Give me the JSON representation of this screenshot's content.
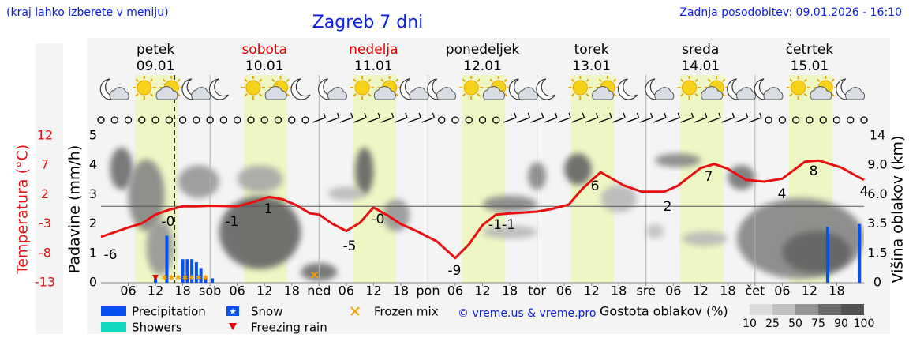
{
  "header": {
    "left_note": "(kraj lahko izberete v meniju)",
    "title": "Zagreb 7 dni",
    "updated": "Zadnja posodobitev: 09.01.2026 - 16:10"
  },
  "chart_data": {
    "type": "meteogram",
    "days": [
      {
        "name": "petek",
        "date": "09.01",
        "color": "#000000"
      },
      {
        "name": "sobota",
        "date": "10.01",
        "color": "#e00000"
      },
      {
        "name": "nedelja",
        "date": "11.01",
        "color": "#e00000"
      },
      {
        "name": "ponedeljek",
        "date": "12.01",
        "color": "#000000"
      },
      {
        "name": "torek",
        "date": "13.01",
        "color": "#000000"
      },
      {
        "name": "sreda",
        "date": "14.01",
        "color": "#000000"
      },
      {
        "name": "četrtek",
        "date": "15.01",
        "color": "#000000"
      }
    ],
    "xlim": [
      0,
      168
    ],
    "xticks": [
      {
        "value": 6,
        "label": "06"
      },
      12,
      18,
      {
        "value": 24,
        "label": "sob"
      },
      {
        "value": 30,
        "label": "06"
      },
      {
        "value": 36,
        "label": "12"
      },
      {
        "value": 42,
        "label": "18"
      },
      {
        "value": 48,
        "label": "ned"
      },
      {
        "value": 54,
        "label": "06"
      },
      {
        "value": 60,
        "label": "12"
      },
      {
        "value": 66,
        "label": "18"
      },
      {
        "value": 72,
        "label": "pon"
      },
      {
        "value": 78,
        "label": "06"
      },
      {
        "value": 84,
        "label": "12"
      },
      {
        "value": 90,
        "label": "18"
      },
      {
        "value": 96,
        "label": "tor"
      },
      {
        "value": 102,
        "label": "06"
      },
      {
        "value": 108,
        "label": "12"
      },
      {
        "value": 114,
        "label": "18"
      },
      {
        "value": 120,
        "label": "sre"
      },
      {
        "value": 126,
        "label": "06"
      },
      {
        "value": 132,
        "label": "12"
      },
      {
        "value": 138,
        "label": "18"
      },
      {
        "value": 144,
        "label": "čet"
      },
      {
        "value": 150,
        "label": "06"
      },
      {
        "value": 156,
        "label": "12"
      },
      {
        "value": 162,
        "label": "18"
      }
    ],
    "temperature": {
      "name": "Temperatura (°C)",
      "color": "#e81010",
      "ylim": [
        -13,
        12
      ],
      "yticks": [
        12,
        7,
        2,
        -3,
        -8,
        -13
      ],
      "x": [
        0,
        3,
        6,
        9,
        12,
        15,
        18,
        21,
        24,
        30,
        33,
        37,
        40,
        43,
        46,
        48,
        51,
        54,
        57,
        60,
        63,
        66,
        70,
        74,
        78,
        81,
        84,
        87,
        90,
        96,
        99,
        103,
        106,
        110,
        115,
        119,
        124,
        127,
        132,
        135,
        138,
        142,
        146,
        150,
        155,
        158,
        163,
        166,
        168
      ],
      "values": [
        -5.2,
        -4.4,
        -3.6,
        -2.9,
        -1.4,
        -0.6,
        0,
        0,
        0.1,
        0,
        0.6,
        1.6,
        1.2,
        0.2,
        -1.2,
        -1.4,
        -3,
        -4.2,
        -2.8,
        -0.2,
        -1.5,
        -3,
        -4.4,
        -6,
        -8.8,
        -6.5,
        -3.2,
        -1.4,
        -1.2,
        -0.9,
        -0.5,
        0.3,
        3,
        5.8,
        3.6,
        2.5,
        2.5,
        3.5,
        6.5,
        7.2,
        6.4,
        4.5,
        4.2,
        4.7,
        7.6,
        7.8,
        6.6,
        5.3,
        4.5
      ],
      "labels": [
        "-6",
        "-0",
        "-1",
        "1",
        "-5",
        "-0",
        "-9",
        "-1-1",
        "6",
        "2",
        "7",
        "4",
        "8",
        "4"
      ]
    },
    "precipitation": {
      "name": "Padavine (mm/h)",
      "color": "#0a4ff0",
      "ylim": [
        0,
        5
      ],
      "yticks": [
        0,
        1,
        2,
        3,
        4,
        5
      ],
      "x": [
        12,
        14.5,
        18,
        19,
        20,
        21,
        22,
        23,
        24.5,
        160,
        167
      ],
      "values": [
        0.15,
        1.6,
        0.8,
        0.8,
        0.8,
        0.7,
        0.5,
        0.2,
        0.15,
        1.9,
        2.0
      ]
    },
    "cloud_height": {
      "name": "Višina oblakov (km)",
      "y2ticks": [
        0,
        1.5,
        3.5,
        {
          "value": 6,
          "label": "6.0"
        },
        {
          "value": 9,
          "label": "9.0"
        },
        14
      ]
    },
    "clouds": [
      {
        "from": 2,
        "to": 7,
        "low": 6.5,
        "high": 12,
        "density": 75
      },
      {
        "from": 6,
        "to": 14,
        "low": 3,
        "high": 10,
        "density": 60
      },
      {
        "from": 10,
        "to": 16,
        "low": 0.4,
        "high": 3.8,
        "density": 50
      },
      {
        "from": 17,
        "to": 26,
        "low": 5.7,
        "high": 9,
        "density": 50
      },
      {
        "from": 26,
        "to": 44,
        "low": 0.7,
        "high": 5.9,
        "density": 80
      },
      {
        "from": 30,
        "to": 40,
        "low": 6.2,
        "high": 9,
        "density": 40
      },
      {
        "from": 44,
        "to": 52,
        "low": 0.1,
        "high": 1,
        "density": 75
      },
      {
        "from": 56,
        "to": 60,
        "low": 6,
        "high": 12,
        "density": 80
      },
      {
        "from": 50,
        "to": 58,
        "low": 5.5,
        "high": 6.8,
        "density": 30
      },
      {
        "from": 62,
        "to": 68,
        "low": 3,
        "high": 5.6,
        "density": 50
      },
      {
        "from": 84,
        "to": 96,
        "low": 4.5,
        "high": 5.9,
        "density": 60
      },
      {
        "from": 84,
        "to": 96,
        "low": 2.5,
        "high": 3.4,
        "density": 30
      },
      {
        "from": 94,
        "to": 98,
        "low": 6.5,
        "high": 9.5,
        "density": 60
      },
      {
        "from": 102,
        "to": 108,
        "low": 7,
        "high": 11,
        "density": 80
      },
      {
        "from": 110,
        "to": 118,
        "low": 4.5,
        "high": 7,
        "density": 30
      },
      {
        "from": 120,
        "to": 124,
        "low": 2.5,
        "high": 3.5,
        "density": 25
      },
      {
        "from": 122,
        "to": 132,
        "low": 8.8,
        "high": 11,
        "density": 60
      },
      {
        "from": 128,
        "to": 138,
        "low": 2,
        "high": 3,
        "density": 30
      },
      {
        "from": 138,
        "to": 144,
        "low": 6.5,
        "high": 9,
        "density": 70
      },
      {
        "from": 140,
        "to": 168,
        "low": 0.2,
        "high": 5.7,
        "density": 60
      },
      {
        "from": 150,
        "to": 165,
        "low": 0.5,
        "high": 3,
        "density": 80
      }
    ],
    "legend": {
      "precipitation": "Precipitation",
      "showers": "Showers",
      "snow": "Snow",
      "freezing_rain": "Freezing rain",
      "frozen_mix": "Frozen mix",
      "credit": "© vreme.us & vreme.pro",
      "density_title": "Gostota oblakov (%)",
      "density_scale": [
        10,
        25,
        50,
        75,
        90,
        100
      ]
    }
  }
}
